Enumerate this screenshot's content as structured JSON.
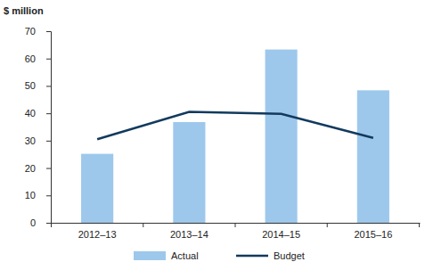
{
  "chart_data": {
    "type": "bar",
    "y_label": "$ million",
    "categories": [
      "2012–13",
      "2013–14",
      "2014–15",
      "2015–16"
    ],
    "series": [
      {
        "name": "Actual",
        "type": "bar",
        "color": "#9dc8ec",
        "values": [
          25.2,
          36.8,
          63.3,
          48.4
        ]
      },
      {
        "name": "Budget",
        "type": "line",
        "color": "#123a5e",
        "values": [
          30.5,
          40.5,
          39.8,
          31.0
        ]
      }
    ],
    "ylim": [
      0,
      70
    ],
    "yticks": [
      0,
      10,
      20,
      30,
      40,
      50,
      60,
      70
    ],
    "grid": false,
    "legend": "bottom"
  }
}
